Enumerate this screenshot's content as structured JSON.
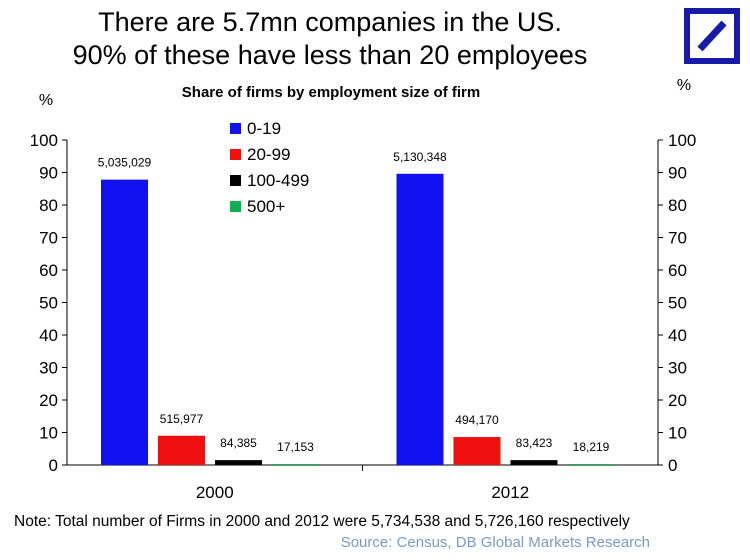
{
  "headline": {
    "line1": "There are 5.7mn companies in the US.",
    "line2": "90% of these have less than 20 employees"
  },
  "logo": {
    "icon": "deutsche-bank-slash-logo",
    "color": "#1a1aaa"
  },
  "chart_data": {
    "type": "bar",
    "title": "Share of  firms by employment size of firm",
    "ylabel_left": "%",
    "ylabel_right": "%",
    "ylim": [
      0,
      100
    ],
    "yticks": [
      0,
      10,
      20,
      30,
      40,
      50,
      60,
      70,
      80,
      90,
      100
    ],
    "categories": [
      "2000",
      "2012"
    ],
    "legend_position": "top-center",
    "grid": false,
    "series": [
      {
        "name": "0-19",
        "color": "#1010f0",
        "values": [
          87.8,
          89.6
        ],
        "labels": [
          "5,035,029",
          "5,130,348"
        ]
      },
      {
        "name": "20-99",
        "color": "#f01010",
        "values": [
          9.0,
          8.6
        ],
        "labels": [
          "515,977",
          "494,170"
        ]
      },
      {
        "name": "100-499",
        "color": "#000000",
        "values": [
          1.5,
          1.5
        ],
        "labels": [
          "84,385",
          "83,423"
        ]
      },
      {
        "name": "500+",
        "color": "#10b050",
        "values": [
          0.3,
          0.3
        ],
        "labels": [
          "17,153",
          "18,219"
        ]
      }
    ]
  },
  "note": "Note: Total number of Firms in 2000 and 2012 were 5,734,538  and 5,726,160 respectively",
  "source": "Source: Census, DB Global Markets Research"
}
